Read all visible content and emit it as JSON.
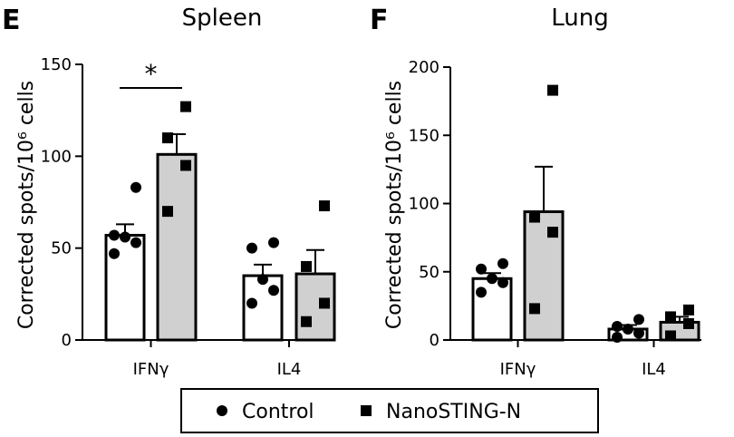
{
  "chart_data": [
    {
      "type": "bar",
      "panel": "E",
      "title": "Spleen",
      "ylabel": "Corrected spots/10⁶ cells",
      "ylim": [
        0,
        150
      ],
      "yticks": [
        0,
        50,
        100,
        150
      ],
      "categories": [
        "IFNγ",
        "IL4"
      ],
      "series": [
        {
          "name": "Control",
          "values": [
            57,
            35
          ],
          "sem": [
            6,
            6
          ],
          "points": [
            [
              47,
              53,
              56,
              57,
              83
            ],
            [
              20,
              27,
              33,
              50,
              53
            ]
          ]
        },
        {
          "name": "NanoSTING-N",
          "values": [
            101,
            36
          ],
          "sem": [
            11,
            13
          ],
          "points": [
            [
              70,
              95,
              110,
              127
            ],
            [
              10,
              20,
              40,
              73
            ]
          ]
        }
      ],
      "significance": [
        {
          "category": "IFNγ",
          "label": "*"
        }
      ]
    },
    {
      "type": "bar",
      "panel": "F",
      "title": "Lung",
      "ylabel": "Corrected spots/10⁶ cells",
      "ylim": [
        0,
        200
      ],
      "yticks": [
        0,
        50,
        100,
        150,
        200
      ],
      "categories": [
        "IFNγ",
        "IL4"
      ],
      "series": [
        {
          "name": "Control",
          "values": [
            45,
            8
          ],
          "sem": [
            4,
            3
          ],
          "points": [
            [
              35,
              42,
              45,
              52,
              56
            ],
            [
              2,
              5,
              8,
              10,
              15
            ]
          ]
        },
        {
          "name": "NanoSTING-N",
          "values": [
            94,
            13
          ],
          "sem": [
            33,
            4
          ],
          "points": [
            [
              23,
              79,
              90,
              183
            ],
            [
              3,
              12,
              17,
              22
            ]
          ]
        }
      ]
    }
  ],
  "legend": {
    "entries": [
      {
        "label": "Control",
        "marker": "circle"
      },
      {
        "label": "NanoSTING-N",
        "marker": "square"
      }
    ]
  },
  "colors": {
    "control": "#ffffff",
    "nanosting": "#d0d0d0",
    "ink": "#000000"
  }
}
